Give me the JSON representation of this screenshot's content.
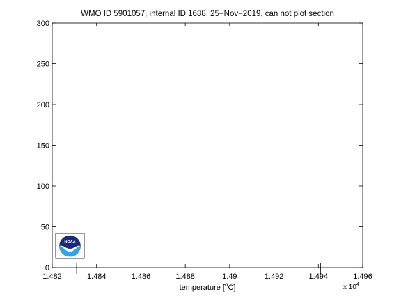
{
  "chart_data": {
    "type": "line",
    "title": "WMO ID 5901057, internal ID 1688, 25−Nov−2019, can not plot section",
    "xlabel_prefix": "temperature [",
    "xlabel_superscript": "o",
    "xlabel_suffix": "C]",
    "ylabel": "",
    "x_multiplier_base": "x 10",
    "x_multiplier_exponent": "4",
    "xlim": [
      1.482,
      1.496
    ],
    "ylim": [
      0,
      300
    ],
    "x_ticks": [
      1.482,
      1.484,
      1.486,
      1.488,
      1.49,
      1.492,
      1.494,
      1.496
    ],
    "x_tick_labels": [
      "1.482",
      "1.484",
      "1.486",
      "1.488",
      "1.49",
      "1.492",
      "1.494",
      "1.496"
    ],
    "y_ticks": [
      0,
      50,
      100,
      150,
      200,
      250,
      300
    ],
    "y_tick_labels": [
      "0",
      "50",
      "100",
      "150",
      "200",
      "250",
      "300"
    ],
    "markers_x": [
      1.4831,
      1.4941
    ],
    "grid": false,
    "series": []
  },
  "logo": {
    "text": "NOAA",
    "colors": {
      "navy": "#1b2a7a",
      "blue": "#2aa8e8",
      "white": "#ffffff"
    }
  }
}
